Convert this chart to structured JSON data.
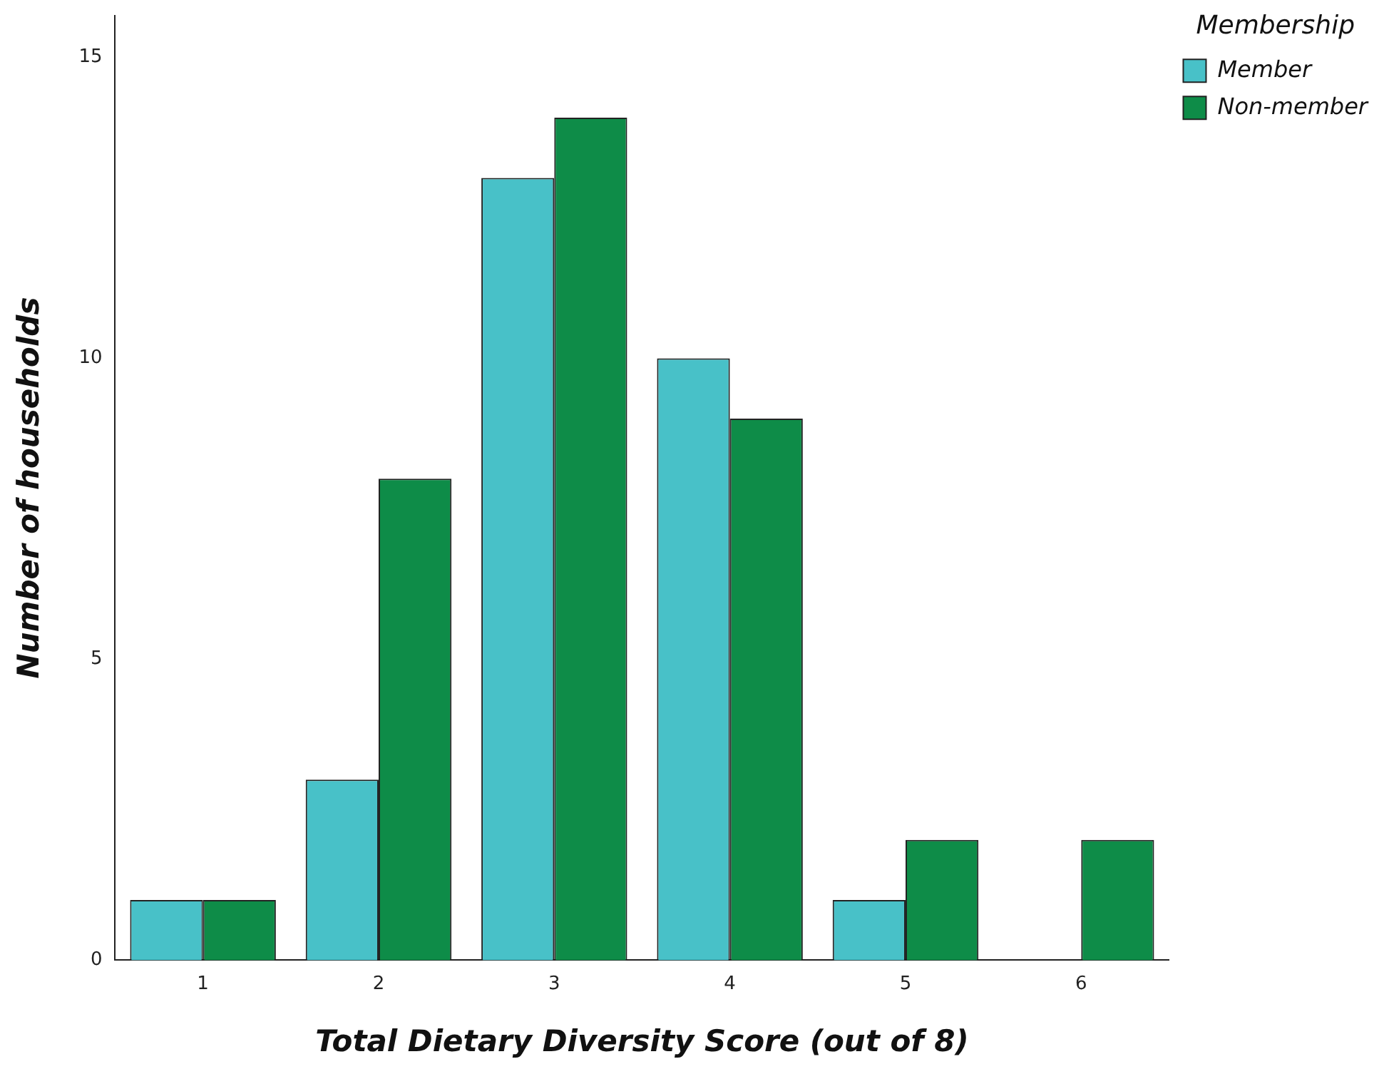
{
  "chart_data": {
    "type": "bar",
    "xlabel": "Total Dietary Diversity Score (out of 8)",
    "ylabel": "Number of households",
    "legend_title": "Membership",
    "categories": [
      "1",
      "2",
      "3",
      "4",
      "5",
      "6"
    ],
    "series": [
      {
        "name": "Member",
        "color": "#48c1c8",
        "values": [
          1,
          3,
          13,
          10,
          1,
          0
        ]
      },
      {
        "name": "Non-member",
        "color": "#0e8c48",
        "values": [
          1,
          8,
          14,
          9,
          2,
          2
        ]
      }
    ],
    "ylim": [
      0,
      15.7
    ],
    "yticks": [
      0,
      5,
      10,
      15
    ],
    "grid": false,
    "legend": "top right"
  }
}
